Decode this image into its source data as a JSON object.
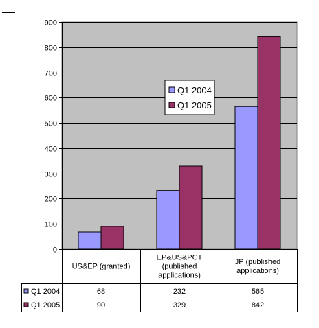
{
  "chart_data": {
    "type": "bar",
    "categories": [
      [
        "US&EP (granted)"
      ],
      [
        "EP&US&PCT",
        "(published",
        "applications)"
      ],
      [
        "JP (published",
        "applications)"
      ]
    ],
    "series": [
      {
        "name": "Q1 2004",
        "values": [
          68,
          232,
          565
        ],
        "color": "#9999ff"
      },
      {
        "name": "Q1 2005",
        "values": [
          90,
          329,
          842
        ],
        "color": "#993366"
      }
    ],
    "ylim": [
      0,
      900
    ],
    "yticks": [
      0,
      100,
      200,
      300,
      400,
      500,
      600,
      700,
      800,
      900
    ],
    "grid": true,
    "plot_background": "#c0c0c0",
    "legend_position": "center",
    "data_table": true,
    "title": "",
    "xlabel": "",
    "ylabel": ""
  }
}
